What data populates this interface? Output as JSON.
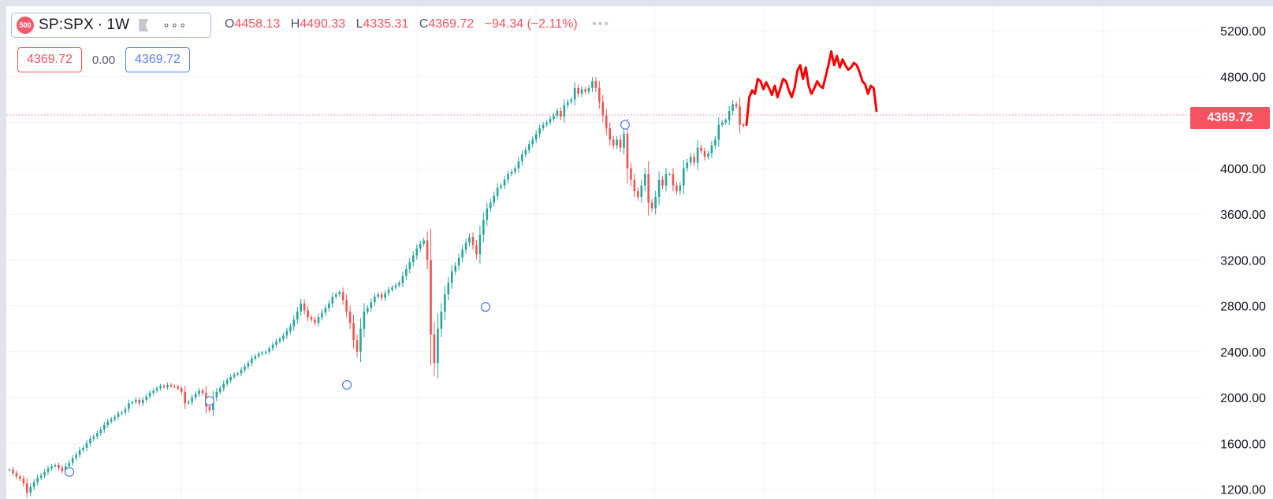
{
  "legend": {
    "badge": "500",
    "symbol": "SP:SPX",
    "separator": "·",
    "interval": "1W",
    "more": "∘∘∘",
    "o_key": "O",
    "o_val": "4458.13",
    "h_key": "H",
    "h_val": "4490.33",
    "l_key": "L",
    "l_val": "4335.31",
    "c_key": "C",
    "c_val": "4369.72",
    "change": "−94.34 (−2.11%)",
    "dots": "•••"
  },
  "price_boxes": {
    "bid": "4369.72",
    "spread": "0.00",
    "ask": "4369.72"
  },
  "current_price_label": "4369.72",
  "colors": {
    "up": "#26a69a",
    "down": "#ef5350",
    "drawing": "#ff0000",
    "price_line": "#f7525f",
    "marker": "#5b7ff2"
  },
  "chart_data": {
    "type": "line",
    "title": "",
    "xlabel": "",
    "ylabel": "",
    "ylim": [
      1150,
      5250
    ],
    "yticks": [
      1200,
      1600,
      2000,
      2400,
      2800,
      3200,
      3600,
      4000,
      4400,
      4800,
      5200
    ],
    "ytick_labels": [
      "1200.00",
      "1600.00",
      "2000.00",
      "2400.00",
      "2800.00",
      "3200.00",
      "3600.00",
      "4000.00",
      "",
      "4800.00",
      "5200.00"
    ],
    "current_price": 4369.72,
    "grid": true,
    "series": [
      {
        "values": [
          1370,
          1340,
          1310,
          1290,
          1250,
          1170,
          1220,
          1260,
          1300,
          1320,
          1350,
          1380,
          1400,
          1410,
          1385,
          1360,
          1400,
          1430,
          1470,
          1500,
          1540,
          1560,
          1600,
          1640,
          1660,
          1690,
          1720,
          1760,
          1790,
          1810,
          1830,
          1860,
          1870,
          1900,
          1950,
          1960,
          1980,
          1950,
          1980,
          2010,
          2040,
          2060,
          2080,
          2100,
          2090,
          2110,
          2100,
          2095,
          2080,
          2050,
          1950,
          1960,
          2000,
          2030,
          2060,
          2040,
          1920,
          1890,
          2000,
          2050,
          2080,
          2120,
          2150,
          2180,
          2200,
          2210,
          2240,
          2270,
          2300,
          2340,
          2360,
          2380,
          2390,
          2400,
          2430,
          2460,
          2490,
          2510,
          2540,
          2580,
          2620,
          2680,
          2750,
          2820,
          2760,
          2700,
          2680,
          2650,
          2700,
          2740,
          2780,
          2820,
          2880,
          2900,
          2920,
          2850,
          2750,
          2650,
          2500,
          2400,
          2600,
          2750,
          2780,
          2830,
          2880,
          2900,
          2870,
          2910,
          2940,
          2960,
          2980,
          3000,
          3060,
          3120,
          3180,
          3240,
          3300,
          3340,
          3370,
          3200,
          2550,
          2300,
          2600,
          2750,
          2900,
          3000,
          3100,
          3150,
          3220,
          3290,
          3350,
          3400,
          3330,
          3250,
          3420,
          3550,
          3650,
          3700,
          3760,
          3830,
          3850,
          3900,
          3950,
          3970,
          4000,
          4060,
          4120,
          4160,
          4210,
          4250,
          4300,
          4350,
          4380,
          4400,
          4430,
          4460,
          4500,
          4450,
          4550,
          4580,
          4600,
          4700,
          4650,
          4690,
          4670,
          4700,
          4760,
          4700,
          4580,
          4460,
          4350,
          4250,
          4200,
          4250,
          4180,
          4300,
          4000,
          3900,
          3800,
          3750,
          3850,
          3950,
          3700,
          3650,
          3750,
          3900,
          3850,
          3950,
          3950,
          3850,
          3800,
          3850,
          4000,
          4050,
          4100,
          4050,
          4180,
          4150,
          4100,
          4130,
          4200,
          4250,
          4380,
          4400,
          4420,
          4500,
          4560,
          4540,
          4380,
          4369.72
        ]
      }
    ],
    "markers": [
      1350,
      1970,
      2110,
      2790,
      4380
    ],
    "annotation_drawing": [
      4380,
      4620,
      4680,
      4650,
      4780,
      4760,
      4690,
      4750,
      4700,
      4640,
      4720,
      4620,
      4700,
      4780,
      4760,
      4680,
      4620,
      4700,
      4850,
      4900,
      4780,
      4880,
      4720,
      4650,
      4700,
      4760,
      4720,
      4700,
      4800,
      4900,
      5020,
      4900,
      4980,
      4880,
      4950,
      4900,
      4860,
      4880,
      4920,
      4900,
      4840,
      4760,
      4730,
      4650,
      4720,
      4700,
      4500
    ]
  }
}
